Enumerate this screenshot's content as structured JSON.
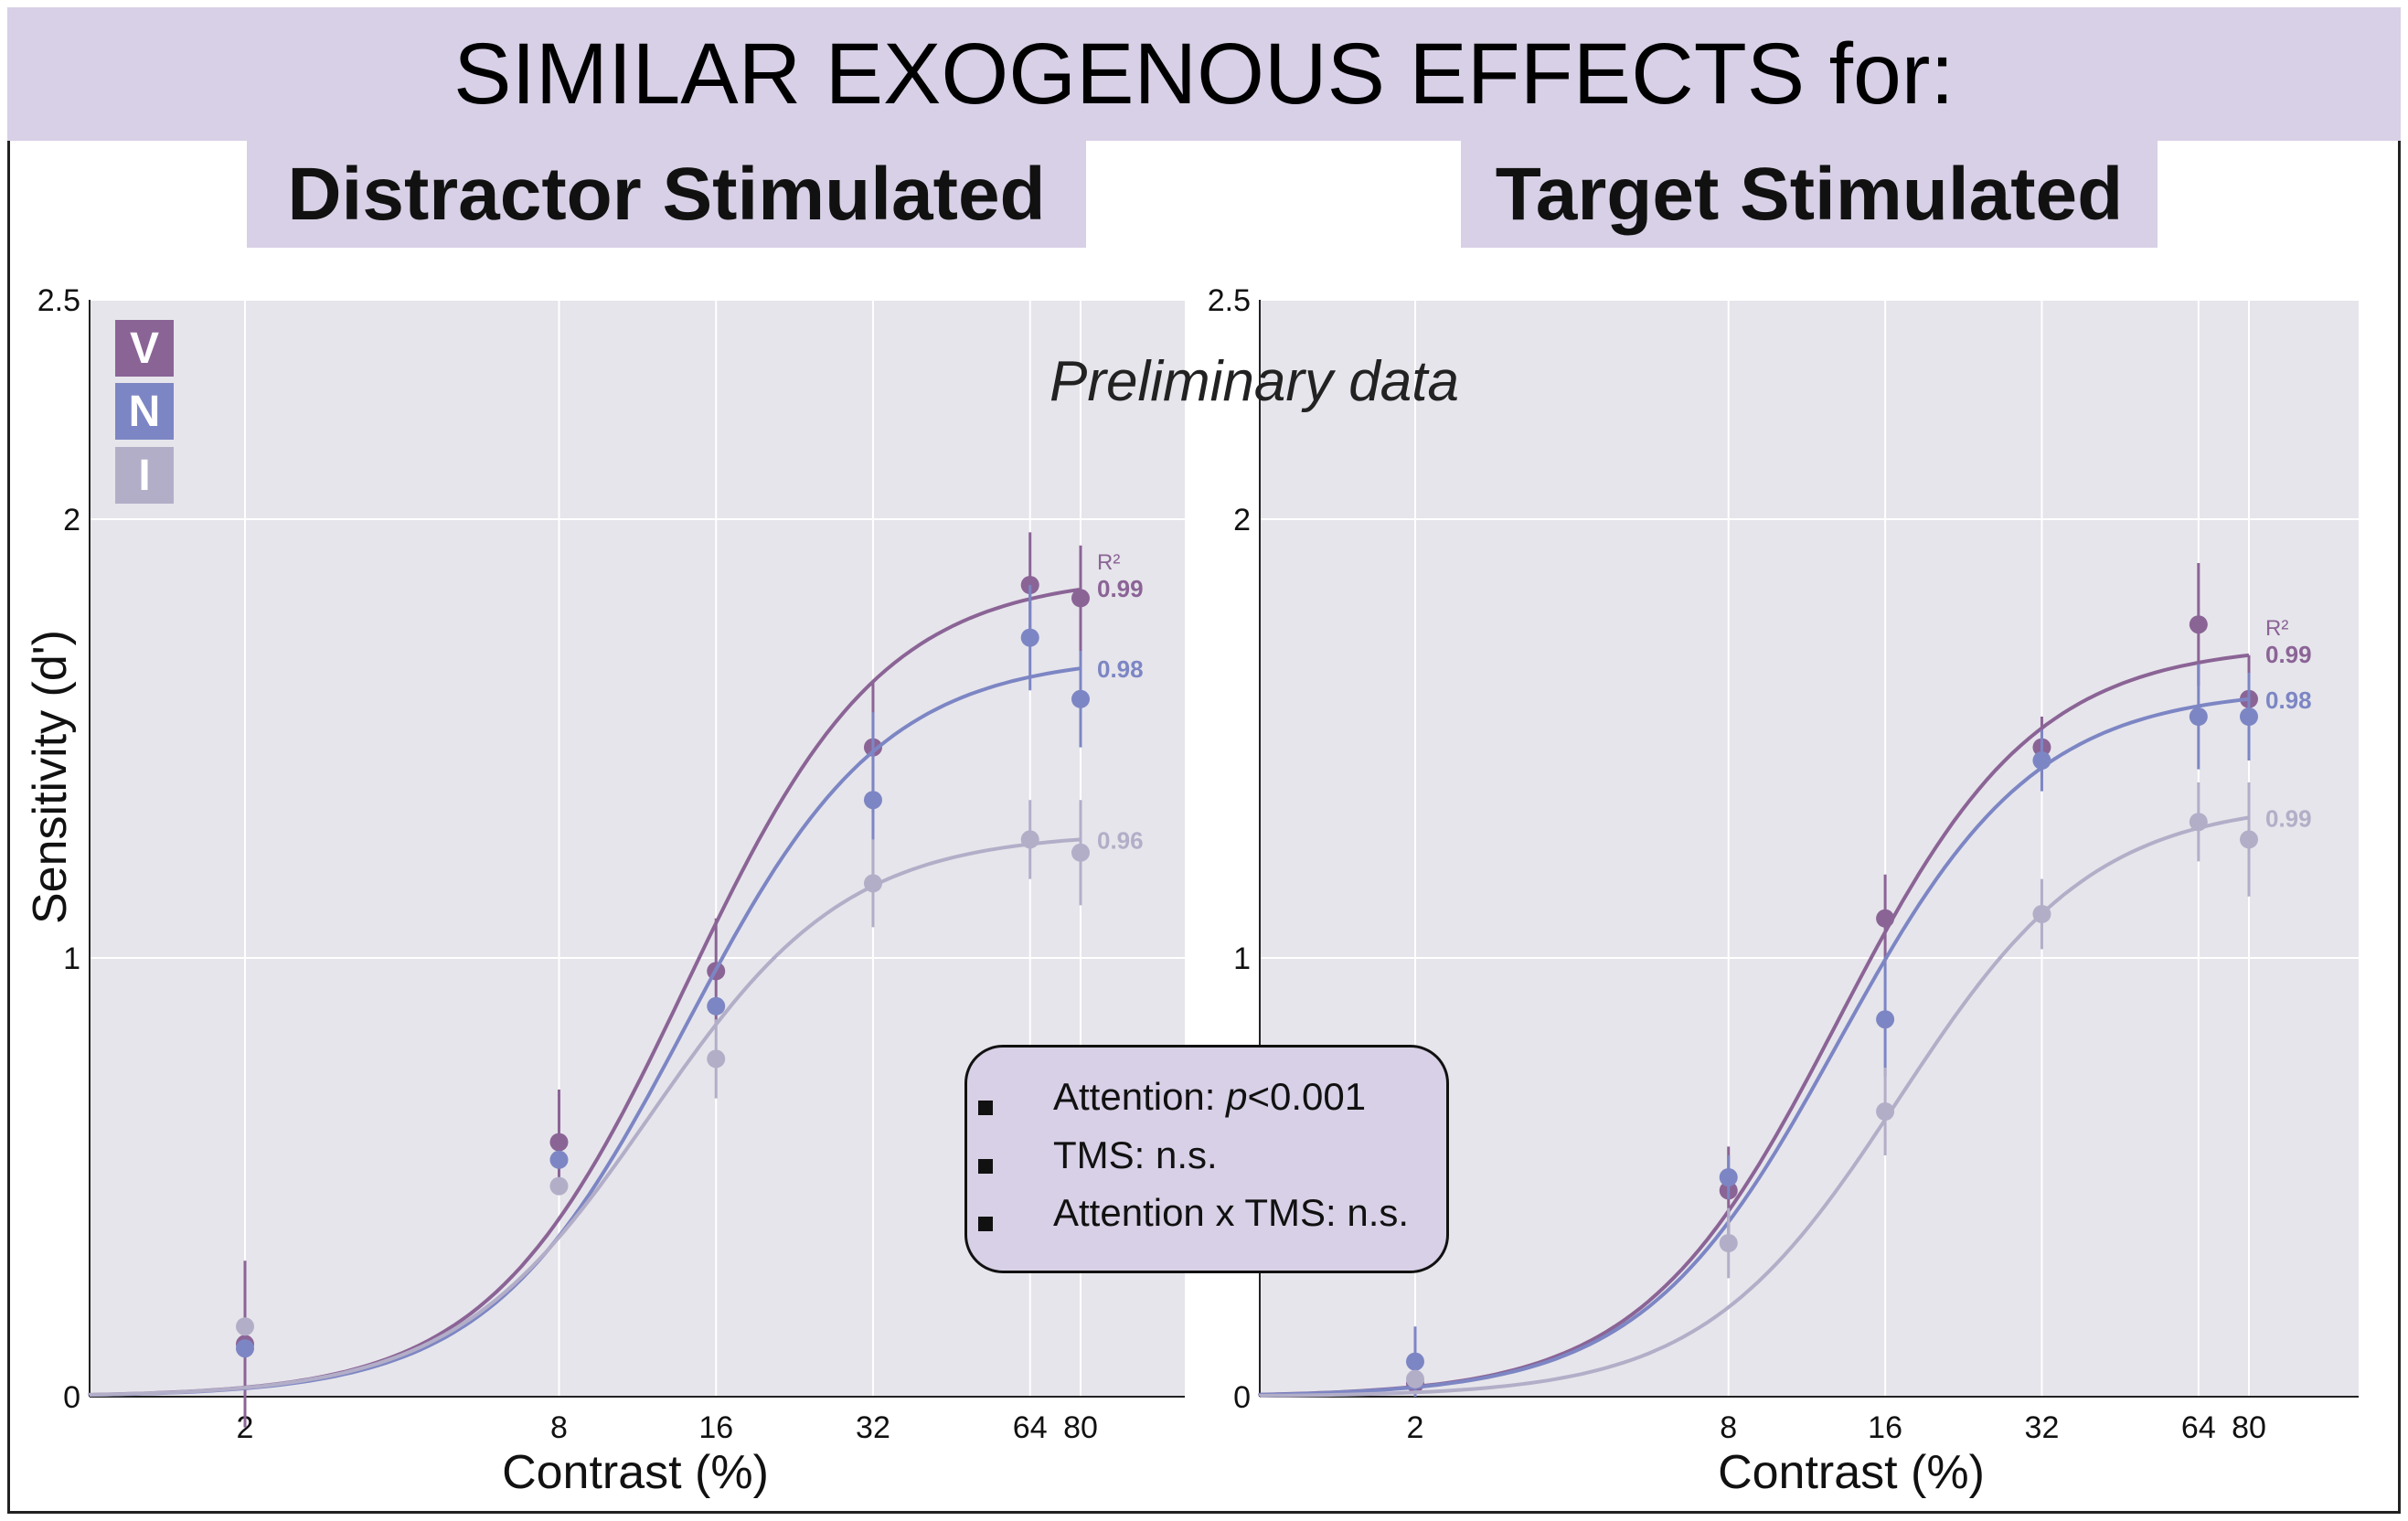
{
  "title": "SIMILAR EXOGENOUS EFFECTS for:",
  "panel_titles": [
    "Distractor Stimulated",
    "Target Stimulated"
  ],
  "preliminary": "Preliminary data",
  "stats": {
    "rows": [
      {
        "label": "Attention: ",
        "italic": "p",
        "rest": "<0.001"
      },
      {
        "label": "TMS: n.s.",
        "italic": "",
        "rest": ""
      },
      {
        "label": "Attention x TMS: n.s.",
        "italic": "",
        "rest": ""
      }
    ]
  },
  "legend": [
    {
      "key": "V",
      "color": "#8b6496"
    },
    {
      "key": "N",
      "color": "#7d86c4"
    },
    {
      "key": "I",
      "color": "#b3aec8"
    }
  ],
  "colors": {
    "V": "#8b6496",
    "N": "#7d86c4",
    "I": "#b3aec8",
    "plot_bg": "#e6e5eb",
    "header_bg": "#d8d0e6"
  },
  "chart_data": [
    {
      "type": "scatter",
      "title": "Distractor Stimulated",
      "xlabel": "Contrast (%)",
      "ylabel": "Sensitivity (d')",
      "xscale": "log",
      "xticks": [
        2,
        8,
        16,
        32,
        64,
        80
      ],
      "yticks": [
        0,
        1,
        2,
        2.5
      ],
      "ylim": [
        0,
        2.5
      ],
      "grid": true,
      "r2_header": "R²",
      "series": [
        {
          "name": "V",
          "x": [
            2,
            8,
            16,
            32,
            64,
            80
          ],
          "y": [
            0.12,
            0.58,
            0.97,
            1.48,
            1.85,
            1.82
          ],
          "err": [
            0.19,
            0.12,
            0.12,
            0.15,
            0.12,
            0.12
          ],
          "fit_end": 1.84,
          "r2": "0.99"
        },
        {
          "name": "N",
          "x": [
            2,
            8,
            16,
            32,
            64,
            80
          ],
          "y": [
            0.11,
            0.54,
            0.89,
            1.36,
            1.73,
            1.59
          ],
          "err": [
            0.0,
            0.0,
            0.0,
            0.2,
            0.12,
            0.11
          ],
          "fit_end": 1.66,
          "r2": "0.98"
        },
        {
          "name": "I",
          "x": [
            2,
            8,
            16,
            32,
            64,
            80
          ],
          "y": [
            0.16,
            0.48,
            0.77,
            1.17,
            1.27,
            1.24
          ],
          "err": [
            0.0,
            0.0,
            0.09,
            0.1,
            0.09,
            0.12
          ],
          "fit_end": 1.27,
          "r2": "0.96"
        }
      ]
    },
    {
      "type": "scatter",
      "title": "Target Stimulated",
      "xlabel": "Contrast (%)",
      "ylabel": "",
      "xscale": "log",
      "xticks": [
        2,
        8,
        16,
        32,
        64,
        80
      ],
      "yticks": [
        0,
        1,
        2,
        2.5
      ],
      "ylim": [
        0,
        2.5
      ],
      "grid": true,
      "r2_header": "R²",
      "series": [
        {
          "name": "V",
          "x": [
            2,
            8,
            16,
            32,
            64,
            80
          ],
          "y": [
            0.03,
            0.47,
            1.09,
            1.48,
            1.76,
            1.59
          ],
          "err": [
            0.0,
            0.1,
            0.1,
            0.07,
            0.14,
            0.1
          ],
          "fit_end": 1.69,
          "r2": "0.99"
        },
        {
          "name": "N",
          "x": [
            2,
            8,
            16,
            32,
            64,
            80
          ],
          "y": [
            0.08,
            0.5,
            0.86,
            1.45,
            1.55,
            1.55
          ],
          "err": [
            0.08,
            0.05,
            0.13,
            0.07,
            0.12,
            0.1
          ],
          "fit_end": 1.59,
          "r2": "0.98"
        },
        {
          "name": "I",
          "x": [
            2,
            8,
            16,
            32,
            64,
            80
          ],
          "y": [
            0.04,
            0.35,
            0.65,
            1.1,
            1.31,
            1.27
          ],
          "err": [
            0.0,
            0.08,
            0.1,
            0.08,
            0.09,
            0.13
          ],
          "fit_end": 1.32,
          "r2": "0.99"
        }
      ]
    }
  ]
}
